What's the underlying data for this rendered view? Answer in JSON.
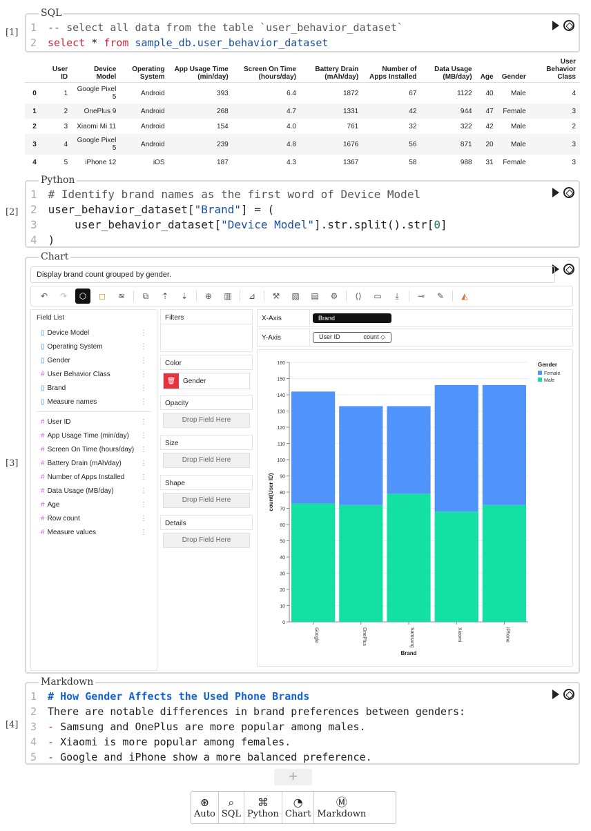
{
  "cells": [
    {
      "index": "[1]",
      "type": "SQL",
      "lines": [
        "-- select all data from the table `user_behavior_dataset`",
        "select",
        "*",
        "from",
        "sample_db.user_behavior_dataset"
      ]
    },
    {
      "index": "[2]",
      "type": "Python"
    },
    {
      "index": "[3]",
      "type": "Chart"
    },
    {
      "index": "[4]",
      "type": "Markdown"
    }
  ],
  "sql": {
    "line1": "-- select all data from the table `user_behavior_dataset`",
    "kw_select": "select",
    "star": "*",
    "kw_from": "from",
    "table": "sample_db.user_behavior_dataset"
  },
  "table": {
    "headers": [
      "",
      "User ID",
      "Device Model",
      "Operating System",
      "App Usage Time (min/day)",
      "Screen On Time (hours/day)",
      "Battery Drain (mAh/day)",
      "Number of Apps Installed",
      "Data Usage (MB/day)",
      "Age",
      "Gender",
      "User Behavior Class"
    ],
    "rows": [
      [
        "0",
        "1",
        "Google Pixel 5",
        "Android",
        "393",
        "6.4",
        "1872",
        "67",
        "1122",
        "40",
        "Male",
        "4"
      ],
      [
        "1",
        "2",
        "OnePlus 9",
        "Android",
        "268",
        "4.7",
        "1331",
        "42",
        "944",
        "47",
        "Female",
        "3"
      ],
      [
        "2",
        "3",
        "Xiaomi Mi 11",
        "Android",
        "154",
        "4.0",
        "761",
        "32",
        "322",
        "42",
        "Male",
        "2"
      ],
      [
        "3",
        "4",
        "Google Pixel 5",
        "Android",
        "239",
        "4.8",
        "1676",
        "56",
        "871",
        "20",
        "Male",
        "3"
      ],
      [
        "4",
        "5",
        "iPhone 12",
        "iOS",
        "187",
        "4.3",
        "1367",
        "58",
        "988",
        "31",
        "Female",
        "3"
      ]
    ]
  },
  "python": {
    "line1": "# Identify brand names as the first word of Device Model",
    "line2a": "user_behavior_dataset[",
    "line2b": "\"Brand\"",
    "line2c": "] = (",
    "line3a": "    user_behavior_dataset[",
    "line3b": "\"Device Model\"",
    "line3c": "].str.split().str[",
    "line3d": "0",
    "line3e": "]",
    "line4": ")"
  },
  "chart_cell": {
    "prompt": "Display brand count grouped by gender.",
    "field_list_title": "Field List",
    "dimensions": [
      "Device Model",
      "Operating System",
      "Gender",
      "User Behavior Class",
      "Brand",
      "Measure names"
    ],
    "dimension_types": [
      "dim",
      "dim",
      "dim",
      "measure",
      "dim",
      "dim"
    ],
    "measures": [
      "User ID",
      "App Usage Time (min/day)",
      "Screen On Time (hours/day)",
      "Battery Drain (mAh/day)",
      "Number of Apps Installed",
      "Data Usage (MB/day)",
      "Age",
      "Row count",
      "Measure values"
    ],
    "filters_title": "Filters",
    "color_title": "Color",
    "color_field": "Gender",
    "opacity_title": "Opacity",
    "size_title": "Size",
    "shape_title": "Shape",
    "details_title": "Details",
    "drop_placeholder": "Drop Field Here",
    "x_axis_label": "X-Axis",
    "x_axis_field": "Brand",
    "y_axis_label": "Y-Axis",
    "y_axis_field": "User ID",
    "y_axis_agg": "count ◇"
  },
  "chart_data": {
    "type": "bar",
    "stacked": true,
    "categories": [
      "Google",
      "OnePlus",
      "Samsung",
      "Xiaomi",
      "iPhone"
    ],
    "series": [
      {
        "name": "Male",
        "values": [
          73,
          72,
          79,
          68,
          72
        ],
        "color": "#13e0a2"
      },
      {
        "name": "Female",
        "values": [
          69,
          61,
          54,
          78,
          74
        ],
        "color": "#5093fb"
      }
    ],
    "xlabel": "Brand",
    "ylabel": "count(User ID)",
    "ylim": [
      0,
      160
    ],
    "yticks": [
      "0",
      "10",
      "20",
      "30",
      "40",
      "50",
      "60",
      "70",
      "80",
      "90",
      "100",
      "110",
      "120",
      "130",
      "140",
      "150",
      "160"
    ],
    "legend_title": "Gender",
    "legend": [
      "Female",
      "Male"
    ],
    "legend_position": "top-right"
  },
  "markdown": {
    "heading": "# How Gender Affects the Used Phone Brands",
    "line2": "There are notable differences in brand preferences between genders:",
    "line3": "Samsung and OnePlus are more popular among males.",
    "line4": "Xiaomi is more popular among females.",
    "line5": "Google and iPhone show a more balanced preference.",
    "dash": "-"
  },
  "add_bar": {
    "plus": "+",
    "items": [
      "Auto",
      "SQL",
      "Python",
      "Chart",
      "Markdown"
    ]
  }
}
